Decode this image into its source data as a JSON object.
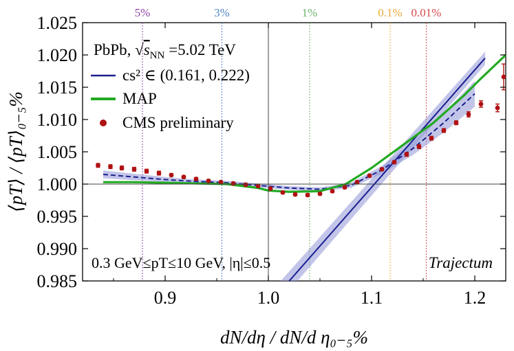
{
  "chart_data": {
    "type": "line",
    "xlabel": "dN/dη / dN/d η₀₋₅%",
    "ylabel": "⟨pT⟩ / ⟨pT⟩₀₋₅%",
    "xlim": [
      0.82,
      1.23
    ],
    "ylim": [
      0.985,
      1.025
    ],
    "x_ticks": [
      0.9,
      1.0,
      1.1,
      1.2
    ],
    "x_tick_labels": [
      "0.9",
      "1.0",
      "1.1",
      "1.2"
    ],
    "y_ticks": [
      0.985,
      0.99,
      0.995,
      1.0,
      1.005,
      1.01,
      1.015,
      1.02,
      1.025
    ],
    "y_tick_labels": [
      "0.985",
      "0.990",
      "0.995",
      "1.000",
      "1.005",
      "1.010",
      "1.015",
      "1.020",
      "1.025"
    ],
    "grid": false,
    "legend_position": "top-left",
    "reference_lines": {
      "x": 1.0,
      "y": 1.0
    },
    "annotations": {
      "system": "PbPb,",
      "energy_prefix": "√",
      "energy_symbol": "s",
      "energy_subscript": "NN",
      "energy_value": "=5.02 TeV",
      "cuts": "0.3 GeV≤pT≤10 GeV, |η|≤0.5",
      "watermark": "Trajectum"
    },
    "centrality_lines": [
      {
        "label": "5%",
        "x": 0.878,
        "color": "#8e3fa6"
      },
      {
        "label": "3%",
        "x": 0.955,
        "color": "#4f86c6"
      },
      {
        "label": "1%",
        "x": 1.04,
        "color": "#6fb36f"
      },
      {
        "label": "0.1%",
        "x": 1.118,
        "color": "#e8a838"
      },
      {
        "label": "0.01%",
        "x": 1.153,
        "color": "#d94b4b"
      }
    ],
    "series": [
      {
        "name": "cs² ∈ (0.161, 0.222)",
        "style": "dashed-band",
        "color": "#1a1f8f",
        "band_color": "#8f95d6",
        "x": [
          0.84,
          0.87,
          0.9,
          0.93,
          0.96,
          0.99,
          1.02,
          1.05,
          1.08,
          1.11,
          1.14,
          1.17,
          1.2
        ],
        "y": [
          1.0015,
          1.0011,
          1.0007,
          1.0004,
          1.0002,
          0.9998,
          0.9994,
          0.9992,
          0.9998,
          1.0022,
          1.0055,
          1.0095,
          1.014
        ],
        "band_half_width": [
          0.0006,
          0.0005,
          0.0004,
          0.0003,
          0.0003,
          0.0003,
          0.0003,
          0.0003,
          0.0004,
          0.0006,
          0.001,
          0.0015,
          0.002
        ]
      },
      {
        "name": "cs² fit line",
        "style": "solid-band",
        "color": "#1a1f8f",
        "band_color": "#8f95d6",
        "x": [
          1.012,
          1.21
        ],
        "y": [
          0.9835,
          1.0195
        ],
        "band_half_width": [
          0.0015,
          0.001
        ]
      },
      {
        "name": "MAP",
        "style": "solid",
        "color": "#22aa22",
        "x": [
          0.84,
          0.87,
          0.9,
          0.93,
          0.96,
          0.99,
          1.0,
          1.02,
          1.05,
          1.075,
          1.1,
          1.13,
          1.16,
          1.19,
          1.205,
          1.23
        ],
        "y": [
          1.0003,
          1.0003,
          1.0002,
          1.0001,
          1.0,
          0.9994,
          0.999,
          0.9988,
          0.9989,
          1.0,
          1.0025,
          1.006,
          1.0095,
          1.0138,
          1.0162,
          1.02
        ]
      },
      {
        "name": "CMS preliminary",
        "style": "points",
        "color": "#b01212",
        "x": [
          0.835,
          0.847,
          0.858,
          0.87,
          0.882,
          0.894,
          0.906,
          0.918,
          0.93,
          0.942,
          0.954,
          0.966,
          0.978,
          0.99,
          1.002,
          1.014,
          1.026,
          1.038,
          1.05,
          1.062,
          1.074,
          1.086,
          1.098,
          1.11,
          1.122,
          1.134,
          1.146,
          1.158,
          1.17,
          1.182,
          1.194,
          1.206,
          1.222,
          1.228
        ],
        "y": [
          1.0029,
          1.0027,
          1.0025,
          1.0023,
          1.002,
          1.0017,
          1.0014,
          1.0011,
          1.0008,
          1.0005,
          1.0003,
          1.0001,
          0.9999,
          0.9997,
          0.9993,
          0.9987,
          0.9984,
          0.9983,
          0.9985,
          0.9989,
          0.9995,
          1.0003,
          1.0013,
          1.0023,
          1.0034,
          1.0046,
          1.0058,
          1.0071,
          1.0083,
          1.0095,
          1.0108,
          1.0124,
          1.0118,
          1.0166
        ],
        "yerr": [
          0.0003,
          0.0003,
          0.0003,
          0.0003,
          0.0003,
          0.0003,
          0.0002,
          0.0002,
          0.0002,
          0.0002,
          0.0002,
          0.0002,
          0.0002,
          0.0002,
          0.0002,
          0.0002,
          0.0002,
          0.0002,
          0.0002,
          0.0002,
          0.0002,
          0.0002,
          0.0002,
          0.0002,
          0.0002,
          0.0003,
          0.0003,
          0.0003,
          0.0003,
          0.0003,
          0.0004,
          0.0005,
          0.0006,
          0.002
        ]
      }
    ],
    "legend": [
      {
        "label": "cs² ∈ (0.161, 0.222)",
        "marker": "line",
        "color": "#1a1f8f"
      },
      {
        "label": "MAP",
        "marker": "line",
        "color": "#22aa22"
      },
      {
        "label": "CMS preliminary",
        "marker": "dot",
        "color": "#b01212"
      }
    ]
  }
}
